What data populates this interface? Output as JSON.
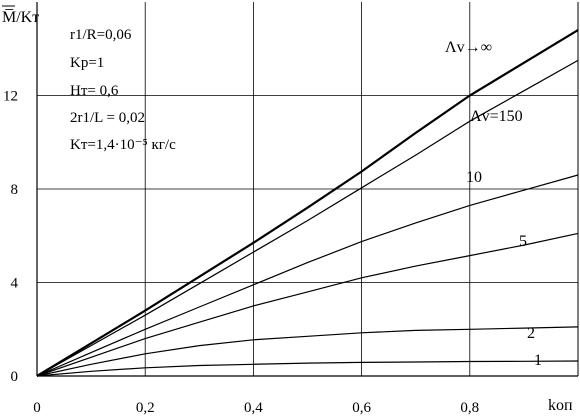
{
  "chart_data": {
    "type": "line",
    "ylabel": "M̅/Kт",
    "xlabel": "kоп",
    "xlim": [
      0,
      1.0
    ],
    "ylim": [
      0,
      16
    ],
    "x_ticks": [
      "0",
      "0,2",
      "0,4",
      "0,6",
      "0,8"
    ],
    "y_ticks": [
      "0",
      "4",
      "8",
      "12"
    ],
    "x_tick_values": [
      0,
      0.2,
      0.4,
      0.6,
      0.8
    ],
    "y_tick_values": [
      0,
      4,
      8,
      12
    ],
    "grid": true,
    "parameters": [
      "r1/R=0,06",
      "Kр=1",
      "Hт= 0,6",
      "2r1/L = 0,02",
      "Kт=1,4·10⁻⁵ кг/с"
    ],
    "series": [
      {
        "name": "Λv→∞",
        "x": [
          0,
          0.1,
          0.2,
          0.3,
          0.4,
          0.5,
          0.6,
          0.7,
          0.8,
          0.9,
          1.0
        ],
        "y": [
          0,
          1.4,
          2.8,
          4.25,
          5.7,
          7.2,
          8.75,
          10.4,
          12.0,
          13.4,
          14.8
        ]
      },
      {
        "name": "Λv=150",
        "x": [
          0,
          0.1,
          0.2,
          0.3,
          0.4,
          0.5,
          0.6,
          0.7,
          0.8,
          0.9,
          1.0
        ],
        "y": [
          0,
          1.3,
          2.6,
          3.95,
          5.3,
          6.65,
          8.05,
          9.45,
          10.9,
          12.2,
          13.5
        ]
      },
      {
        "name": "10",
        "x": [
          0,
          0.1,
          0.2,
          0.3,
          0.4,
          0.5,
          0.6,
          0.7,
          0.8,
          0.9,
          1.0
        ],
        "y": [
          0,
          1.0,
          2.0,
          2.95,
          3.9,
          4.85,
          5.75,
          6.55,
          7.3,
          7.95,
          8.6
        ]
      },
      {
        "name": "5",
        "x": [
          0,
          0.1,
          0.2,
          0.3,
          0.4,
          0.5,
          0.6,
          0.7,
          0.8,
          0.9,
          1.0
        ],
        "y": [
          0,
          0.8,
          1.6,
          2.3,
          3.0,
          3.6,
          4.2,
          4.7,
          5.15,
          5.6,
          6.1
        ]
      },
      {
        "name": "2",
        "x": [
          0,
          0.1,
          0.2,
          0.3,
          0.4,
          0.5,
          0.6,
          0.7,
          0.8,
          0.9,
          1.0
        ],
        "y": [
          0,
          0.5,
          0.95,
          1.3,
          1.55,
          1.7,
          1.85,
          1.95,
          2.0,
          2.05,
          2.1
        ]
      },
      {
        "name": "1",
        "x": [
          0,
          0.1,
          0.2,
          0.3,
          0.4,
          0.5,
          0.6,
          0.7,
          0.8,
          0.9,
          1.0
        ],
        "y": [
          0,
          0.2,
          0.35,
          0.45,
          0.5,
          0.55,
          0.58,
          0.6,
          0.62,
          0.63,
          0.64
        ]
      }
    ],
    "curve_labels": [
      "Λv→∞",
      "Λv=150",
      "10",
      "5",
      "2",
      "1"
    ],
    "colors": {
      "line": "#000000",
      "grid": "#000000",
      "background": "#ffffff"
    }
  }
}
